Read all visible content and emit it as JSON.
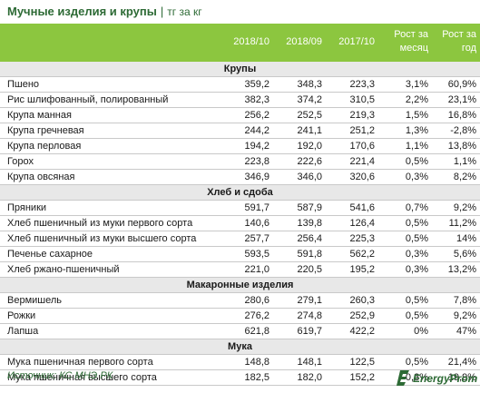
{
  "title": "Мучные изделия и крупы",
  "unit": "тг за кг",
  "columns": [
    "2018/10",
    "2018/09",
    "2017/10",
    "Рост за месяц",
    "Рост за год"
  ],
  "col_month_l1": "Рост за",
  "col_month_l2": "месяц",
  "col_year_l1": "Рост за",
  "col_year_l2": "год",
  "sections": [
    {
      "name": "Крупы",
      "rows": [
        [
          "Пшено",
          "359,2",
          "348,3",
          "223,3",
          "3,1%",
          "60,9%"
        ],
        [
          "Рис шлифованный, полированный",
          "382,3",
          "374,2",
          "310,5",
          "2,2%",
          "23,1%"
        ],
        [
          "Крупа манная",
          "256,2",
          "252,5",
          "219,3",
          "1,5%",
          "16,8%"
        ],
        [
          "Крупа гречневая",
          "244,2",
          "241,1",
          "251,2",
          "1,3%",
          "-2,8%"
        ],
        [
          "Крупа перловая",
          "194,2",
          "192,0",
          "170,6",
          "1,1%",
          "13,8%"
        ],
        [
          "Горох",
          "223,8",
          "222,6",
          "221,4",
          "0,5%",
          "1,1%"
        ],
        [
          "Крупа овсяная",
          "346,9",
          "346,0",
          "320,6",
          "0,3%",
          "8,2%"
        ]
      ]
    },
    {
      "name": "Хлеб и сдоба",
      "rows": [
        [
          "Пряники",
          "591,7",
          "587,9",
          "541,6",
          "0,7%",
          "9,2%"
        ],
        [
          "Хлеб пшеничный из муки первого сорта",
          "140,6",
          "139,8",
          "126,4",
          "0,5%",
          "11,2%"
        ],
        [
          "Хлеб пшеничный из муки высшего сорта",
          "257,7",
          "256,4",
          "225,3",
          "0,5%",
          "14%"
        ],
        [
          "Печенье сахарное",
          "593,5",
          "591,8",
          "562,2",
          "0,3%",
          "5,6%"
        ],
        [
          "Хлеб ржано-пшеничный",
          "221,0",
          "220,5",
          "195,2",
          "0,3%",
          "13,2%"
        ]
      ]
    },
    {
      "name": "Макаронные изделия",
      "rows": [
        [
          "Вермишель",
          "280,6",
          "279,1",
          "260,3",
          "0,5%",
          "7,8%"
        ],
        [
          "Рожки",
          "276,2",
          "274,8",
          "252,9",
          "0,5%",
          "9,2%"
        ],
        [
          "Лапша",
          "621,8",
          "619,7",
          "422,2",
          "0%",
          "47%"
        ]
      ]
    },
    {
      "name": "Мука",
      "rows": [
        [
          "Мука пшеничная первого сорта",
          "148,8",
          "148,1",
          "122,5",
          "0,5%",
          "21,4%"
        ],
        [
          "Мука пшеничная высшего сорта",
          "182,5",
          "182,0",
          "152,2",
          "0,3%",
          "19,9%"
        ]
      ]
    }
  ],
  "source": "Источник: КС МНЭ РК",
  "logo": "EnergyProm",
  "colors": {
    "header": "#8cc63f",
    "accent": "#2d6a35",
    "section_bg": "#e8e8e8"
  }
}
